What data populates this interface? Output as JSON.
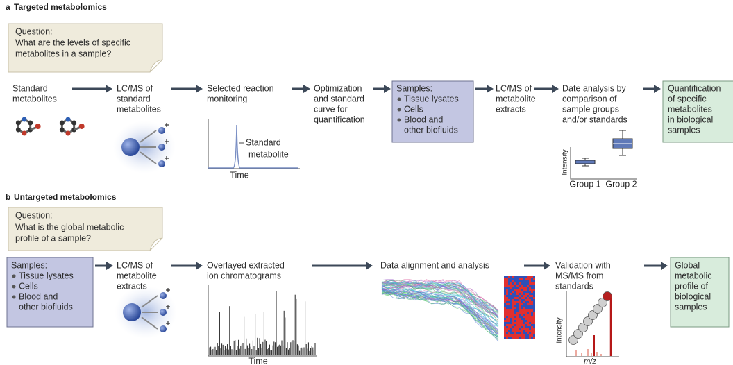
{
  "panel_a": {
    "label": "a",
    "title": "Targeted metabolomics",
    "question": {
      "heading": "Question:",
      "lines": [
        "What are the levels of specific",
        "metabolites in a sample?"
      ]
    },
    "standards": {
      "lines": [
        "Standard",
        "metabolites"
      ]
    },
    "lcms": {
      "lines": [
        "LC/MS of",
        "standard",
        "metabolites"
      ]
    },
    "srm": {
      "lines": [
        "Selected reaction",
        "monitoring"
      ],
      "peak_label": [
        "Standard",
        "metabolite"
      ],
      "x_label": "Time"
    },
    "optimization": {
      "lines": [
        "Optimization",
        "and standard",
        "curve for",
        "quantification"
      ]
    },
    "samples": {
      "heading": "Samples:",
      "items": [
        [
          "Tissue lysates"
        ],
        [
          "Cells"
        ],
        [
          "Blood and",
          "other biofluids"
        ]
      ]
    },
    "lcms_extracts": {
      "lines": [
        "LC/MS of",
        "metabolite",
        "extracts"
      ]
    },
    "analysis": {
      "lines": [
        "Date analysis by",
        "comparison of",
        "sample groups",
        "and/or standards"
      ],
      "y_label": "Intensity",
      "groups": [
        "Group 1",
        "Group 2"
      ]
    },
    "result": {
      "lines": [
        "Quantification",
        "of specific",
        "metabolites",
        "in biological",
        "samples"
      ]
    }
  },
  "panel_b": {
    "label": "b",
    "title": "Untargeted metabolomics",
    "question": {
      "heading": "Question:",
      "lines": [
        "What is the global metabolic",
        "profile of a sample?"
      ]
    },
    "samples": {
      "heading": "Samples:",
      "items": [
        [
          "Tissue lysates"
        ],
        [
          "Cells"
        ],
        [
          "Blood and",
          "other biofluids"
        ]
      ]
    },
    "lcms": {
      "lines": [
        "LC/MS of",
        "metabolite",
        "extracts"
      ]
    },
    "chromatograms": {
      "lines": [
        "Overlayed extracted",
        "ion chromatograms"
      ],
      "x_label": "Time"
    },
    "alignment": {
      "lines": [
        "Data alignment and analysis"
      ]
    },
    "validation": {
      "lines": [
        "Validation with",
        "MS/MS from",
        "standards"
      ],
      "y_label": "Intensity",
      "x_label": "m/z"
    },
    "result": {
      "lines": [
        "Global",
        "metabolic",
        "profile of",
        "biological",
        "samples"
      ]
    }
  }
}
